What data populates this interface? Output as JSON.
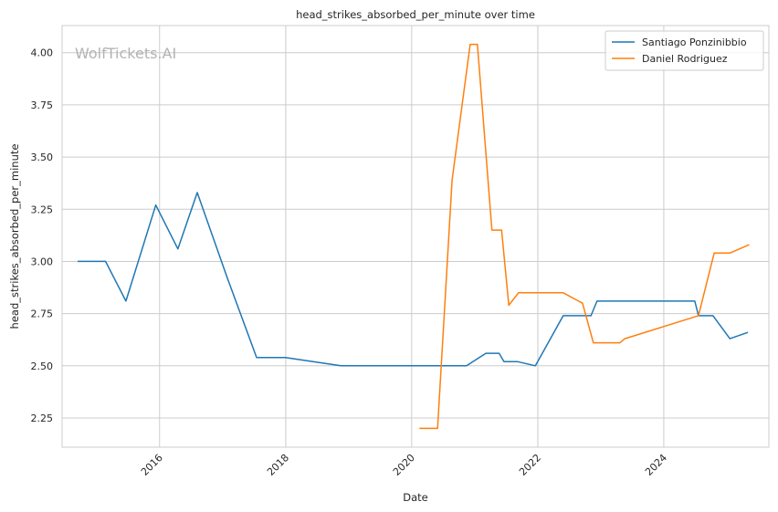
{
  "watermark": "WolfTickets.AI",
  "chart_data": {
    "type": "line",
    "title": "head_strikes_absorbed_per_minute over time",
    "xlabel": "Date",
    "ylabel": "head_strikes_absorbed_per_minute",
    "xlim": [
      "2014-06-15",
      "2025-09-01"
    ],
    "ylim": [
      2.11,
      4.13
    ],
    "x_ticks": [
      "2016-01-01",
      "2018-01-01",
      "2020-01-01",
      "2022-01-01",
      "2024-01-01"
    ],
    "x_tick_labels": [
      "2016",
      "2018",
      "2020",
      "2022",
      "2024"
    ],
    "y_ticks": [
      2.25,
      2.5,
      2.75,
      3.0,
      3.25,
      3.5,
      3.75,
      4.0
    ],
    "y_tick_labels": [
      "2.25",
      "2.50",
      "2.75",
      "3.00",
      "3.25",
      "3.50",
      "3.75",
      "4.00"
    ],
    "grid": true,
    "legend_position": "top-right",
    "series": [
      {
        "name": "Santiago Ponzinibbio",
        "color": "#1f77b4",
        "x": [
          "2014-09-13",
          "2015-02-22",
          "2015-06-20",
          "2015-12-10",
          "2016-04-16",
          "2016-08-06",
          "2017-01-28",
          "2017-07-16",
          "2017-12-30",
          "2018-11-17",
          "2020-11-14",
          "2021-03-06",
          "2021-05-22",
          "2021-06-19",
          "2021-09-04",
          "2021-12-18",
          "2022-05-28",
          "2022-11-05",
          "2022-12-10",
          "2023-05-06",
          "2024-06-29",
          "2024-07-20",
          "2024-10-12",
          "2025-01-18",
          "2025-05-03"
        ],
        "y": [
          3.0,
          3.0,
          2.81,
          3.27,
          3.06,
          3.33,
          2.92,
          2.54,
          2.54,
          2.5,
          2.5,
          2.56,
          2.56,
          2.52,
          2.52,
          2.5,
          2.74,
          2.74,
          2.81,
          2.81,
          2.81,
          2.74,
          2.74,
          2.63,
          2.66
        ]
      },
      {
        "name": "Daniel Rodriguez",
        "color": "#ff7f0e",
        "x": [
          "2020-02-15",
          "2020-05-30",
          "2020-08-22",
          "2020-12-05",
          "2021-01-16",
          "2021-04-10",
          "2021-06-05",
          "2021-07-17",
          "2021-09-11",
          "2022-05-28",
          "2022-09-17",
          "2022-11-19",
          "2023-04-22",
          "2023-05-20",
          "2024-07-20",
          "2024-10-19",
          "2025-01-18",
          "2025-05-10"
        ],
        "y": [
          2.2,
          2.2,
          3.39,
          4.04,
          4.04,
          3.15,
          3.15,
          2.79,
          2.85,
          2.85,
          2.8,
          2.61,
          2.61,
          2.63,
          2.74,
          3.04,
          3.04,
          3.08
        ]
      }
    ]
  }
}
